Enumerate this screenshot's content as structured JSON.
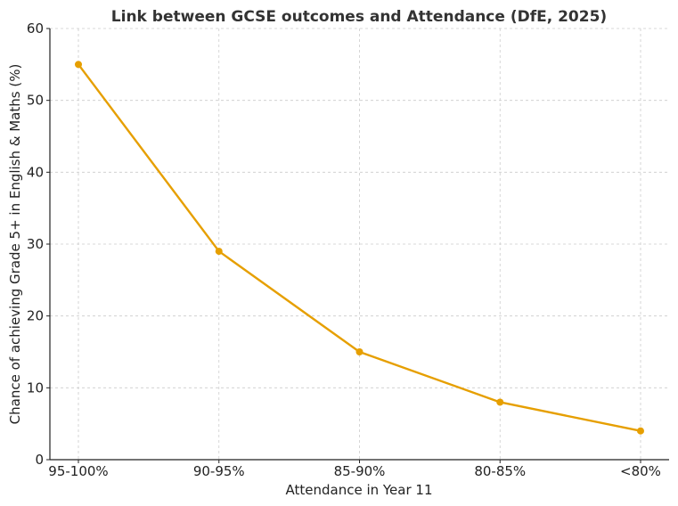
{
  "chart_data": {
    "type": "line",
    "title": "Link between GCSE outcomes and Attendance (DfE, 2025)",
    "xlabel": "Attendance in Year 11",
    "ylabel": "Chance of achieving Grade 5+ in English & Maths (%)",
    "categories": [
      "95-100%",
      "90-95%",
      "85-90%",
      "80-85%",
      "<80%"
    ],
    "series": [
      {
        "values": [
          55,
          29,
          15,
          8,
          4
        ],
        "color": "#E69F00"
      }
    ],
    "ylim": [
      0,
      60
    ],
    "yticks": [
      0,
      10,
      20,
      30,
      40,
      50,
      60
    ],
    "grid": true,
    "markers": true
  }
}
